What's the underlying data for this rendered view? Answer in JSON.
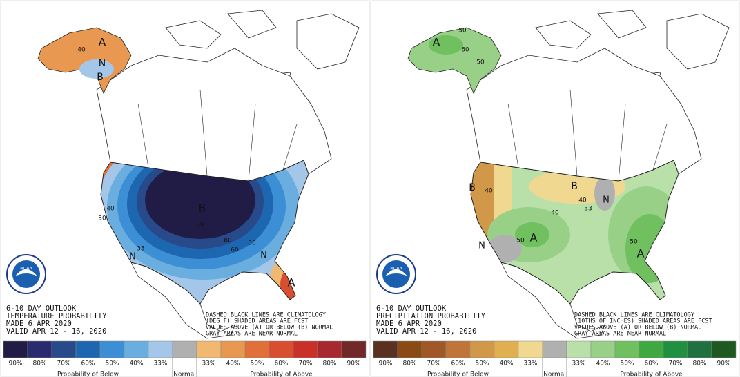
{
  "panels": [
    {
      "title_lines": [
        "6-10 DAY OUTLOOK",
        "TEMPERATURE PROBABILITY",
        "MADE  6 APR 2020",
        "VALID  APR 12 - 16, 2020"
      ],
      "note_lines": [
        "DASHED BLACK LINES ARE CLIMATOLOGY",
        "(DEG F) SHADED AREAS ARE FCST",
        "VALUES ABOVE (A) OR BELOW (B) NORMAL",
        "GRAY AREAS ARE NEAR-NORMAL"
      ],
      "logo": "NOAA",
      "map_labels": [
        "A",
        "40",
        "B",
        "N",
        "B",
        "N",
        "N",
        "A",
        "40",
        "50",
        "33",
        "90",
        "80",
        "60",
        "50"
      ],
      "legend": {
        "labels": [
          "90%",
          "80%",
          "70%",
          "60%",
          "50%",
          "40%",
          "33%",
          "33%",
          "40%",
          "50%",
          "60%",
          "70%",
          "80%",
          "90%"
        ],
        "colors": [
          "#201c45",
          "#2a2a6e",
          "#284a8a",
          "#1d66b0",
          "#3c8fd4",
          "#6aaee0",
          "#a4c6e8",
          "#b0b0b0",
          "#f0b870",
          "#e89850",
          "#e07038",
          "#d84f30",
          "#c83028",
          "#a82830",
          "#702828"
        ],
        "groups": [
          "Probability of Below",
          "Normal",
          "Probability of Above"
        ]
      }
    },
    {
      "title_lines": [
        "6-10 DAY OUTLOOK",
        "PRECIPITATION PROBABILITY",
        "MADE  6 APR 2020",
        "VALID  APR 12 - 16, 2020"
      ],
      "note_lines": [
        "DASHED BLACK LINES ARE CLIMATOLOGY",
        "(10THS OF INCHES) SHADED AREAS ARE FCST",
        "VALUES ABOVE (A) OR BELOW (B) NORMAL",
        "GRAY AREAS ARE NEAR-NORMAL"
      ],
      "logo": "NOAA",
      "map_labels": [
        "A",
        "50",
        "60",
        "50",
        "B",
        "40",
        "B",
        "40",
        "33",
        "N",
        "N",
        "A",
        "50",
        "A",
        "50",
        "40"
      ],
      "legend": {
        "labels": [
          "90%",
          "80%",
          "70%",
          "60%",
          "50%",
          "40%",
          "33%",
          "33%",
          "40%",
          "50%",
          "60%",
          "70%",
          "80%",
          "90%"
        ],
        "colors": [
          "#5a3020",
          "#8a4a14",
          "#a05828",
          "#c07438",
          "#d09848",
          "#e0b050",
          "#f0d890",
          "#b0b0b0",
          "#b8e0a8",
          "#98d088",
          "#70c060",
          "#40a840",
          "#209040",
          "#207040",
          "#1e5a20"
        ],
        "groups": [
          "Probability of Below",
          "Normal",
          "Probability of Above"
        ]
      }
    }
  ]
}
